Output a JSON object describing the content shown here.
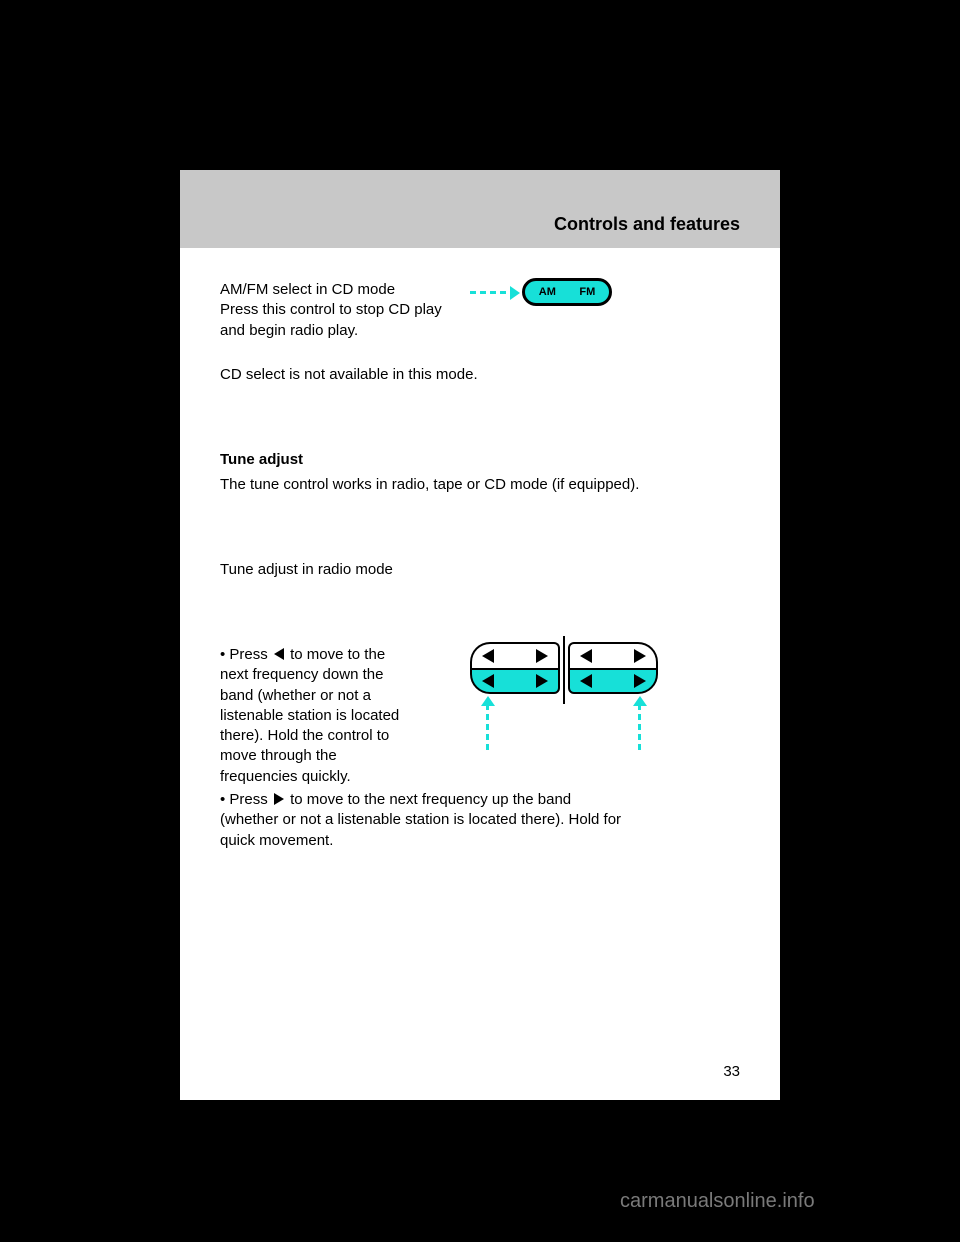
{
  "header": {
    "title": "Controls and features"
  },
  "amfm": {
    "para1": "AM/FM select in CD mode",
    "para2": "Press this control to stop CD play\nand begin radio play.",
    "para3": "CD select is not available in this mode.",
    "btn_left": "AM",
    "btn_right": "FM",
    "arrow_color": "#17e0d8"
  },
  "tune": {
    "heading": "Tune adjust",
    "intro": "The tune control works in radio, tape or CD mode (if equipped).",
    "radio_heading": "Tune adjust in radio mode",
    "bullet1_a": "Press",
    "bullet1_b": "to move to the\nnext frequency down the\nband (whether or not a\nlistenable station is located\nthere). Hold the control to\nmove through the\nfrequencies quickly.",
    "bullet2_a": "Press",
    "bullet2_b": "to move to the next frequency up the band\n(whether or not a listenable station is located there). Hold for\nquick movement."
  },
  "page_number": "33",
  "watermark": "carmanualsonline.info",
  "figure_colors": {
    "accent": "#17e0d8",
    "line": "#000000",
    "bg": "#ffffff"
  }
}
